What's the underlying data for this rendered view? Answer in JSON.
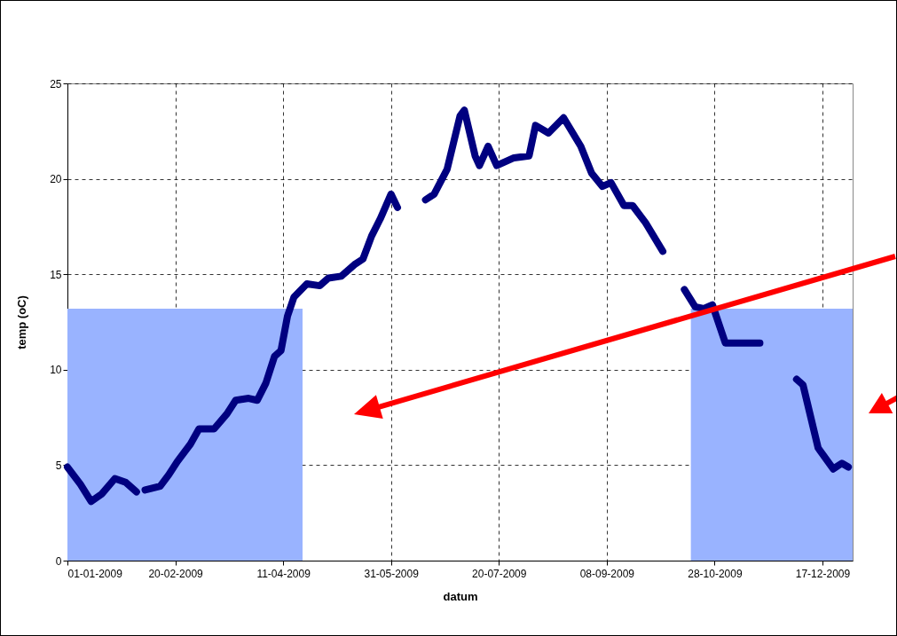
{
  "chart_data": {
    "type": "line",
    "xlabel": "datum",
    "ylabel": "temp (oC)",
    "x": [
      "2009-01-01",
      "2009-01-07",
      "2009-01-12",
      "2009-01-17",
      "2009-01-23",
      "2009-01-28",
      "2009-02-02",
      "2009-02-04",
      "2009-02-06",
      "2009-02-13",
      "2009-02-17",
      "2009-02-21",
      "2009-02-27",
      "2009-03-03",
      "2009-03-10",
      "2009-03-16",
      "2009-03-20",
      "2009-03-26",
      "2009-03-30",
      "2009-04-03",
      "2009-04-07",
      "2009-04-10",
      "2009-04-13",
      "2009-04-16",
      "2009-04-22",
      "2009-04-28",
      "2009-05-02",
      "2009-05-08",
      "2009-05-14",
      "2009-05-18",
      "2009-05-22",
      "2009-05-26",
      "2009-05-31",
      "2009-06-03",
      "2009-06-10",
      "2009-06-16",
      "2009-06-20",
      "2009-06-26",
      "2009-07-02",
      "2009-07-04",
      "2009-07-09",
      "2009-07-11",
      "2009-07-15",
      "2009-07-19",
      "2009-07-27",
      "2009-08-03",
      "2009-08-06",
      "2009-08-12",
      "2009-08-19",
      "2009-08-27",
      "2009-09-01",
      "2009-09-06",
      "2009-09-10",
      "2009-09-16",
      "2009-09-20",
      "2009-09-26",
      "2009-10-04",
      "2009-10-08",
      "2009-10-14",
      "2009-10-19",
      "2009-10-23",
      "2009-10-27",
      "2009-11-02",
      "2009-11-18",
      "2009-11-25",
      "2009-12-05",
      "2009-12-08",
      "2009-12-15",
      "2009-12-22",
      "2009-12-26",
      "2009-12-29"
    ],
    "series": [
      {
        "type": "area",
        "color": "#99b3ff",
        "x": [
          "2009-01-01",
          "2009-04-20"
        ],
        "values": [
          13.2,
          13.2
        ]
      },
      {
        "type": "area",
        "color": "#99b3ff",
        "x": [
          "2009-10-17",
          "2009-12-31"
        ],
        "values": [
          13.2,
          13.2
        ]
      },
      {
        "color": "#000080",
        "values": [
          4.9,
          4.0,
          3.1,
          3.5,
          4.3,
          4.1,
          3.6,
          null,
          3.7,
          3.9,
          4.5,
          5.2,
          6.1,
          6.9,
          6.9,
          7.7,
          8.4,
          8.5,
          8.4,
          9.3,
          10.7,
          11.0,
          12.8,
          13.8,
          14.5,
          14.4,
          14.8,
          14.9,
          15.5,
          15.8,
          17.0,
          17.9,
          19.2,
          18.5,
          null,
          18.9,
          19.2,
          20.5,
          23.3,
          23.6,
          21.2,
          20.7,
          21.7,
          20.7,
          21.1,
          21.2,
          22.8,
          22.4,
          23.2,
          21.7,
          20.3,
          19.6,
          19.8,
          18.6,
          18.6,
          17.7,
          16.2,
          null,
          14.2,
          13.3,
          13.2,
          13.4,
          11.4,
          11.4,
          null,
          9.5,
          9.2,
          5.9,
          4.8,
          5.1,
          4.9
        ]
      }
    ],
    "xlim": [
      "2009-01-01",
      "2009-12-31"
    ],
    "xticks": [
      {
        "value": "2009-01-01",
        "label": "01-01-2009"
      },
      {
        "value": "2009-02-20",
        "label": "20-02-2009"
      },
      {
        "value": "2009-04-11",
        "label": "11-04-2009"
      },
      {
        "value": "2009-05-31",
        "label": "31-05-2009"
      },
      {
        "value": "2009-07-20",
        "label": "20-07-2009"
      },
      {
        "value": "2009-09-08",
        "label": "08-09-2009"
      },
      {
        "value": "2009-10-28",
        "label": "28-10-2009"
      },
      {
        "value": "2009-12-17",
        "label": "17-12-2009"
      }
    ],
    "ylim": [
      0,
      25
    ],
    "yticks": [
      0,
      5,
      10,
      15,
      20,
      25
    ],
    "grid": true,
    "line_style": "solid"
  }
}
